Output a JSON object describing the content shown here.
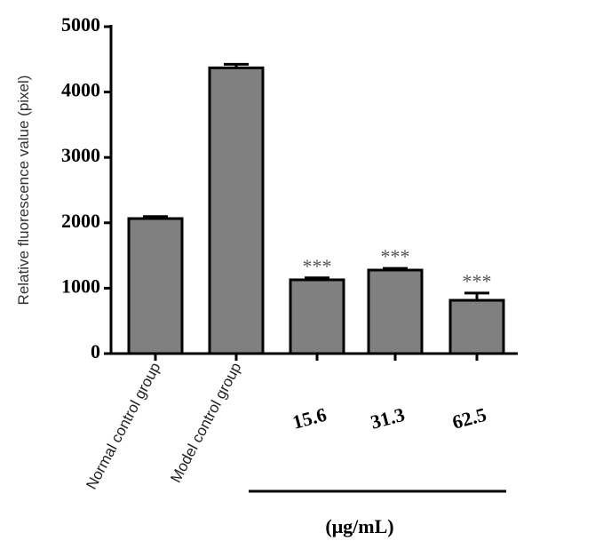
{
  "chart_data": {
    "type": "bar",
    "y_label": "Relative fluorescence value (pixel)",
    "categories": [
      "Normal control group",
      "Model control group",
      "15.6",
      "31.3",
      "62.5"
    ],
    "values": [
      2065,
      4370,
      1128,
      1277,
      815
    ],
    "errors": [
      30,
      55,
      30,
      25,
      110
    ],
    "significance": [
      null,
      null,
      "***",
      "***",
      "***"
    ],
    "group_label": "(μg/mL)",
    "color": "#808080",
    "ylim": [
      0,
      5000
    ],
    "yticks": [
      0,
      1000,
      2000,
      3000,
      4000,
      5000
    ]
  }
}
